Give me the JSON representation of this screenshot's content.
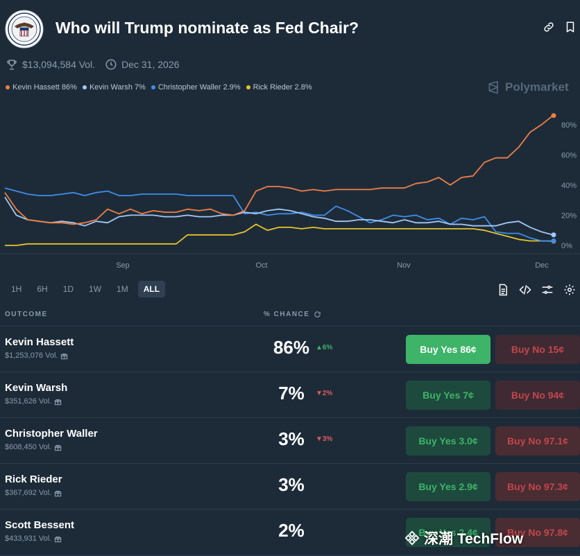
{
  "market": {
    "title": "Who will Trump nominate as Fed Chair?",
    "volume": "$13,094,584 Vol.",
    "end_date": "Dec 31, 2026"
  },
  "brand": "Polymarket",
  "legend": [
    {
      "label": "Kevin Hassett 86%",
      "color": "#f07f44"
    },
    {
      "label": "Kevin Warsh 7%",
      "color": "#a4c8f5"
    },
    {
      "label": "Christopher Waller 2.9%",
      "color": "#3f8ee9"
    },
    {
      "label": "Rick Rieder 2.8%",
      "color": "#e8c52c"
    }
  ],
  "chart_data": {
    "type": "line",
    "x_ticks": [
      "Sep",
      "Oct",
      "Nov",
      "Dec"
    ],
    "y_ticks": [
      "80%",
      "60%",
      "40%",
      "20%",
      "0%"
    ],
    "ylim": [
      0,
      90
    ],
    "series": [
      {
        "name": "Kevin Hassett",
        "color": "#f07f44",
        "values": [
          35,
          24,
          17,
          16,
          15,
          15,
          14,
          15,
          17,
          24,
          21,
          24,
          21,
          23,
          22,
          22,
          24,
          23,
          24,
          21,
          20,
          23,
          36,
          39,
          39,
          38,
          36,
          37,
          36,
          37,
          37,
          37,
          37,
          38,
          38,
          38,
          41,
          42,
          45,
          40,
          45,
          46,
          55,
          58,
          58,
          65,
          75,
          80,
          86
        ]
      },
      {
        "name": "Kevin Warsh",
        "color": "#a4c8f5",
        "values": [
          32,
          20,
          17,
          16,
          15,
          16,
          15,
          13,
          16,
          15,
          19,
          20,
          20,
          20,
          19,
          19,
          20,
          19,
          19,
          20,
          20,
          22,
          21,
          23,
          24,
          23,
          21,
          19,
          18,
          16,
          16,
          17,
          17,
          16,
          15,
          17,
          15,
          15,
          16,
          14,
          14,
          13,
          13,
          13,
          15,
          16,
          12,
          9,
          7
        ]
      },
      {
        "name": "Christopher Waller",
        "color": "#3f8ee9",
        "values": [
          38,
          36,
          34,
          33,
          33,
          34,
          35,
          33,
          35,
          36,
          33,
          33,
          34,
          34,
          34,
          34,
          33,
          33,
          33,
          33,
          33,
          21,
          22,
          20,
          21,
          21,
          22,
          20,
          20,
          26,
          23,
          19,
          15,
          17,
          20,
          19,
          20,
          17,
          18,
          14,
          18,
          17,
          19,
          9,
          8,
          8,
          5,
          3,
          3
        ]
      },
      {
        "name": "Rick Rieder",
        "color": "#e8c52c",
        "values": [
          0,
          0,
          1,
          1,
          1,
          1,
          1,
          1,
          1,
          1,
          1,
          1,
          1,
          1,
          1,
          1,
          7,
          7,
          7,
          7,
          7,
          9,
          14,
          10,
          12,
          12,
          11,
          12,
          11,
          11,
          11,
          11,
          11,
          11,
          11,
          11,
          11,
          11,
          11,
          11,
          11,
          11,
          10,
          8,
          6,
          4,
          3,
          3,
          2.8
        ]
      }
    ]
  },
  "ranges": [
    {
      "label": "1H",
      "active": false
    },
    {
      "label": "6H",
      "active": false
    },
    {
      "label": "1D",
      "active": false
    },
    {
      "label": "1W",
      "active": false
    },
    {
      "label": "1M",
      "active": false
    },
    {
      "label": "ALL",
      "active": true
    }
  ],
  "table": {
    "outcome_header": "OUTCOME",
    "chance_header": "% CHANCE",
    "rows": [
      {
        "name": "Kevin Hassett",
        "vol": "$1,253,076 Vol.",
        "pct": "86%",
        "delta": "▲6%",
        "dir": "up",
        "yes": "Buy Yes 86¢",
        "no": "Buy No 15¢"
      },
      {
        "name": "Kevin Warsh",
        "vol": "$351,626 Vol.",
        "pct": "7%",
        "delta": "▼2%",
        "dir": "down",
        "yes": "Buy Yes 7¢",
        "no": "Buy No 94¢"
      },
      {
        "name": "Christopher Waller",
        "vol": "$608,450 Vol.",
        "pct": "3%",
        "delta": "▼3%",
        "dir": "down",
        "yes": "Buy Yes 3.0¢",
        "no": "Buy No 97.1¢"
      },
      {
        "name": "Rick Rieder",
        "vol": "$367,692 Vol.",
        "pct": "3%",
        "delta": "",
        "dir": "none",
        "yes": "Buy Yes 2.9¢",
        "no": "Buy No 97.3¢"
      },
      {
        "name": "Scott Bessent",
        "vol": "$433,931 Vol.",
        "pct": "2%",
        "delta": "",
        "dir": "none",
        "yes": "Buy Yes 2.4¢",
        "no": "Buy No 97.8¢"
      }
    ]
  },
  "watermark_text": "深潮 TechFlow"
}
